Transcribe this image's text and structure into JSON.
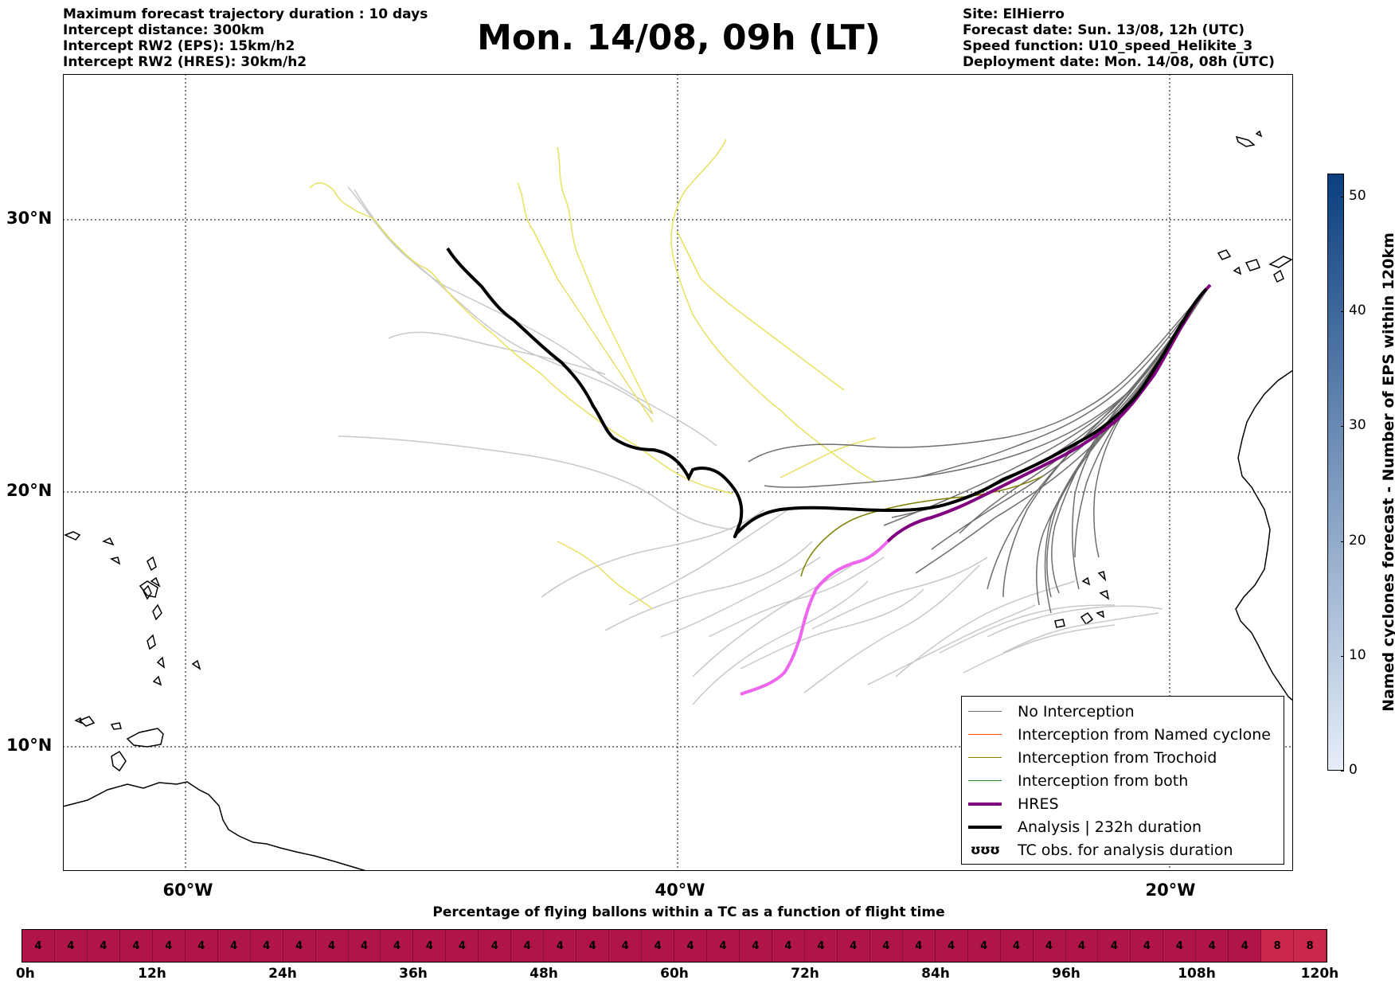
{
  "header": {
    "left": [
      "Maximum forecast trajectory duration : 10 days",
      "Intercept distance: 300km",
      "Intercept RW2 (EPS):  15km/h2",
      "Intercept RW2 (HRES): 30km/h2"
    ],
    "title": "Mon. 14/08, 09h (LT)",
    "right": [
      "Site: ElHierro",
      "Forecast date: Sun. 13/08, 12h (UTC)",
      "Speed function: U10_speed_Helikite_3",
      "Deployment date: Mon. 14/08, 08h (UTC)"
    ]
  },
  "map": {
    "lat_labels": [
      "30°N",
      "20°N",
      "10°N"
    ],
    "lon_labels": [
      "60°W",
      "40°W",
      "20°W"
    ],
    "colors": {
      "no_interception": "#6e6e6e",
      "ensemble_faded": "#c8c8c8",
      "trochoid": "#808000",
      "named_cyclone": "#ff4500",
      "both": "#228b22",
      "hres": "#800080",
      "hres_late": "#ee66ee",
      "analysis": "#000000",
      "tc_obs": "#e8e060"
    }
  },
  "legend": {
    "items": [
      {
        "label": "No Interception",
        "kind": "line",
        "color": "#6e6e6e",
        "width": 1.5
      },
      {
        "label": "Interception from Named cyclone",
        "kind": "line",
        "color": "#ff4500",
        "width": 1.5
      },
      {
        "label": "Interception from Trochoid",
        "kind": "line",
        "color": "#808000",
        "width": 1.5
      },
      {
        "label": "Interception from both",
        "kind": "line",
        "color": "#228b22",
        "width": 1.5
      },
      {
        "label": "HRES",
        "kind": "line",
        "color": "#800080",
        "width": 4
      },
      {
        "label": "Analysis | 232h duration",
        "kind": "line",
        "color": "#000000",
        "width": 4
      },
      {
        "label": "TC obs. for analysis duration",
        "kind": "glyph",
        "glyph": "ʊʊʊ",
        "color": "#000000"
      }
    ]
  },
  "colorbar": {
    "label": "Named cyclones forecast - Number of EPS within 120km",
    "ticks": [
      "0",
      "10",
      "20",
      "30",
      "40",
      "50"
    ],
    "color_low": "#e6eef8",
    "color_high": "#0b3f80"
  },
  "bottom": {
    "title": "Percentage of flying ballons within a TC as a function of flight time",
    "cells": [
      "4",
      "4",
      "4",
      "4",
      "4",
      "4",
      "4",
      "4",
      "4",
      "4",
      "4",
      "4",
      "4",
      "4",
      "4",
      "4",
      "4",
      "4",
      "4",
      "4",
      "4",
      "4",
      "4",
      "4",
      "4",
      "4",
      "4",
      "4",
      "4",
      "4",
      "4",
      "4",
      "4",
      "4",
      "4",
      "4",
      "4",
      "4",
      "8",
      "8"
    ],
    "time_labels": [
      "0h",
      "12h",
      "24h",
      "36h",
      "48h",
      "60h",
      "72h",
      "84h",
      "96h",
      "108h",
      "120h"
    ],
    "color_low": "#b0154a",
    "color_high": "#c9284a"
  }
}
